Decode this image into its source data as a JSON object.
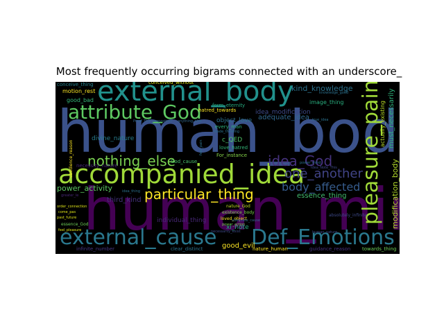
{
  "chart_data": {
    "type": "wordcloud",
    "title": "Most frequently occurring bigrams connected with an underscore_",
    "background": "#000000",
    "colormap": "viridis",
    "words": [
      {
        "text": "human_body",
        "weight": 100,
        "color": "#3b528b"
      },
      {
        "text": "human_mind",
        "weight": 96,
        "color": "#440154"
      },
      {
        "text": "external_body",
        "weight": 60,
        "color": "#21918c"
      },
      {
        "text": "accompanied_idea",
        "weight": 58,
        "color": "#a0da39"
      },
      {
        "text": "external_cause",
        "weight": 46,
        "color": "#2a788e"
      },
      {
        "text": "Def_Emotions",
        "weight": 46,
        "color": "#2a788e"
      },
      {
        "text": "attribute_God",
        "weight": 44,
        "color": "#5ec962"
      },
      {
        "text": "pleasure_pain",
        "weight": 40,
        "color": "#a0da39"
      },
      {
        "text": "nothing_else",
        "weight": 30,
        "color": "#7ad151"
      },
      {
        "text": "particular_thing",
        "weight": 28,
        "color": "#fde725"
      },
      {
        "text": "idea_God",
        "weight": 26,
        "color": "#46327e"
      },
      {
        "text": "one_another",
        "weight": 24,
        "color": "#414487"
      },
      {
        "text": "body_affected",
        "weight": 22,
        "color": "#365c8d"
      },
      {
        "text": "kind_knowledge",
        "weight": 16,
        "color": "#2c728e"
      },
      {
        "text": "adequate_idea",
        "weight": 14,
        "color": "#31688e"
      },
      {
        "text": "modification_body",
        "weight": 14,
        "color": "#b5de2b"
      },
      {
        "text": "power_activity",
        "weight": 14,
        "color": "#5ec962"
      },
      {
        "text": "essence_thing",
        "weight": 14,
        "color": "#44bf70"
      },
      {
        "text": "must_necessarily",
        "weight": 12,
        "color": "#2fb47c"
      },
      {
        "text": "third_kind",
        "weight": 12,
        "color": "#46337e"
      },
      {
        "text": "divine_nature",
        "weight": 12,
        "color": "#287d8e"
      },
      {
        "text": "object_love",
        "weight": 12,
        "color": "#2c728e"
      },
      {
        "text": "good_evil",
        "weight": 12,
        "color": "#fde725"
      },
      {
        "text": "individual_thing",
        "weight": 11,
        "color": "#482878"
      },
      {
        "text": "idea_modification",
        "weight": 11,
        "color": "#3e4a89"
      },
      {
        "text": "motion_rest",
        "weight": 9,
        "color": "#fde725"
      },
      {
        "text": "image_thing",
        "weight": 9,
        "color": "#29af7f"
      },
      {
        "text": "good_bad",
        "weight": 9,
        "color": "#35b779"
      },
      {
        "text": "conceive_thing",
        "weight": 8,
        "color": "#26828e"
      },
      {
        "text": "conceived_without",
        "weight": 8,
        "color": "#dde318"
      },
      {
        "text": "form_eternity",
        "weight": 8,
        "color": "#27ad81"
      },
      {
        "text": "hatred_towards",
        "weight": 8,
        "color": "#fde725"
      },
      {
        "text": "every_man",
        "weight": 8,
        "color": "#2eb37c"
      },
      {
        "text": "c_QED",
        "weight": 9,
        "color": "#52c569"
      },
      {
        "text": "love_hatred",
        "weight": 8,
        "color": "#34b679"
      },
      {
        "text": "For_instance",
        "weight": 8,
        "color": "#86d549"
      },
      {
        "text": "God_cause",
        "weight": 8,
        "color": "#4ac16d"
      },
      {
        "text": "actually_existing",
        "weight": 9,
        "color": "#bddf26"
      },
      {
        "text": "nature_God",
        "weight": 7,
        "color": "#c2df23"
      },
      {
        "text": "existence_body",
        "weight": 7,
        "color": "#7fd34e"
      },
      {
        "text": "loved_object",
        "weight": 7,
        "color": "#fde725"
      },
      {
        "text": "power_action",
        "weight": 7,
        "color": "#7ad151"
      },
      {
        "text": "xi_note",
        "weight": 9,
        "color": "#26ad81"
      },
      {
        "text": "nature_human",
        "weight": 8,
        "color": "#fde725"
      },
      {
        "text": "clear_distinct",
        "weight": 8,
        "color": "#2c728e"
      },
      {
        "text": "guidance_reason",
        "weight": 8,
        "color": "#46327e"
      },
      {
        "text": "towards_thing",
        "weight": 8,
        "color": "#6ece58"
      },
      {
        "text": "order_connection",
        "weight": 6,
        "color": "#dde318"
      },
      {
        "text": "come_pas",
        "weight": 6,
        "color": "#dde318"
      },
      {
        "text": "past_future",
        "weight": 6,
        "color": "#dde318"
      },
      {
        "text": "essence_God",
        "weight": 7,
        "color": "#6ece58"
      },
      {
        "text": "feel_pleasure",
        "weight": 6,
        "color": "#dde318"
      },
      {
        "text": "greater_le",
        "weight": 6,
        "color": "#482878"
      },
      {
        "text": "necessity_nature",
        "weight": 7,
        "color": "#482878"
      },
      {
        "text": "infinite_number",
        "weight": 8,
        "color": "#453781"
      },
      {
        "text": "Proof_This_proposition",
        "weight": 6,
        "color": "#31688e"
      },
      {
        "text": "anything_else",
        "weight": 6,
        "color": "#31688e"
      },
      {
        "text": "made_thinking",
        "weight": 5,
        "color": "#2c728e"
      },
      {
        "text": "true_idea",
        "weight": 5,
        "color": "#2c728e"
      },
      {
        "text": "absolutely_infinite",
        "weight": 6,
        "color": "#3e4a89"
      },
      {
        "text": "human_nature",
        "weight": 6,
        "color": "#3e4a89"
      },
      {
        "text": "obedience_reason",
        "weight": 6,
        "color": "#fde725"
      },
      {
        "text": "feel_pain",
        "weight": 5,
        "color": "#2c728e"
      },
      {
        "text": "knowledge_good",
        "weight": 5,
        "color": "#2c728e"
      },
      {
        "text": "idea_thing",
        "weight": 5,
        "color": "#2c728e"
      },
      {
        "text": "Idea_Note_This",
        "weight": 5,
        "color": "#3e4a89"
      },
      {
        "text": "power_mind",
        "weight": 5,
        "color": "#2c728e"
      },
      {
        "text": "adequate_cause",
        "weight": 5,
        "color": "#31688e"
      },
      {
        "text": "necessarily_exist",
        "weight": 5,
        "color": "#3e4a89"
      }
    ]
  }
}
